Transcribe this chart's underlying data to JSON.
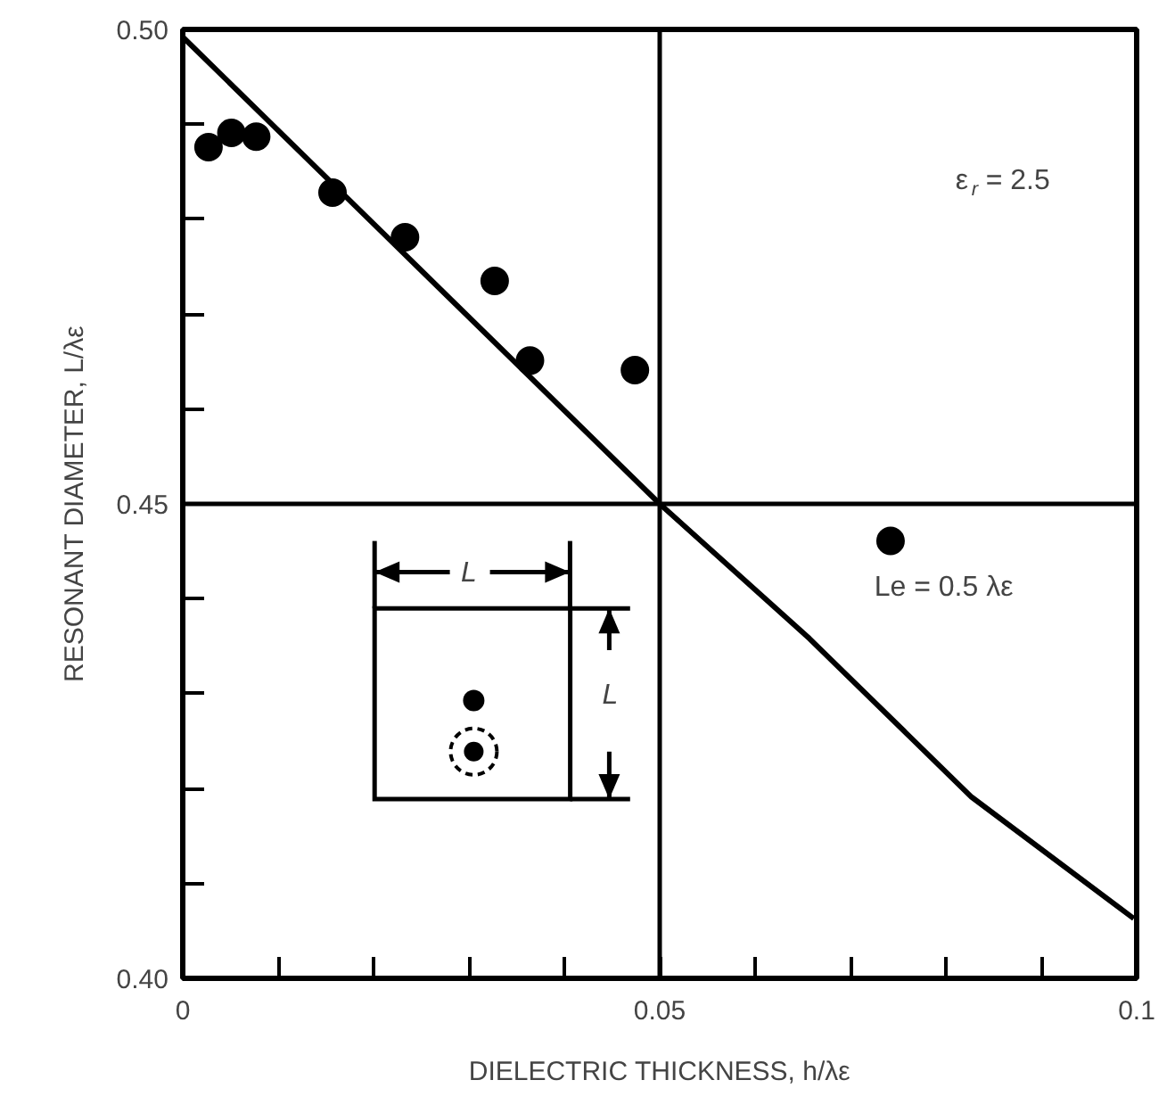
{
  "chart_data": {
    "type": "scatter",
    "xlabel": "DIELECTRIC THICKNESS, h/λε",
    "ylabel": "RESONANT DIAMETER, L/λε",
    "xlim": [
      0,
      0.1
    ],
    "ylim": [
      0.4,
      0.5
    ],
    "xticks": [
      0,
      {
        "value": 0.01,
        "label": null
      },
      {
        "value": 0.02,
        "label": null
      },
      {
        "value": 0.03,
        "label": null
      },
      {
        "value": 0.04,
        "label": null
      },
      0.05,
      {
        "value": 0.06,
        "label": null
      },
      {
        "value": 0.07,
        "label": null
      },
      {
        "value": 0.08,
        "label": null
      },
      {
        "value": 0.09,
        "label": null
      },
      0.1
    ],
    "yticks": [
      {
        "value": 0.4,
        "label": "0.40"
      },
      {
        "value": 0.41,
        "label": null
      },
      {
        "value": 0.42,
        "label": null
      },
      {
        "value": 0.43,
        "label": null
      },
      {
        "value": 0.44,
        "label": null
      },
      0.45,
      {
        "value": 0.46,
        "label": null
      },
      {
        "value": 0.47,
        "label": null
      },
      {
        "value": 0.48,
        "label": null
      },
      {
        "value": 0.49,
        "label": null
      },
      {
        "value": 0.5,
        "label": "0.50"
      }
    ],
    "series": [
      {
        "marker": "circle",
        "color": "#000000",
        "x": [
          0.0027,
          0.0051,
          0.0077,
          0.0157,
          0.0233,
          0.0327,
          0.0364,
          0.0474,
          0.0742
        ],
        "values": [
          0.4876,
          0.4891,
          0.4887,
          0.4828,
          0.4781,
          0.4735,
          0.4651,
          0.4641,
          0.4461
        ]
      },
      {
        "type": "line",
        "color": "#000000",
        "x": [
          0,
          0.025,
          0.05,
          0.0657,
          0.0827,
          0.0997
        ],
        "values": [
          0.4992,
          0.4746,
          0.45,
          0.4358,
          0.4191,
          0.4063
        ]
      }
    ],
    "ref_lines": [
      {
        "axis": "x",
        "value": 0.05
      },
      {
        "axis": "y",
        "value": 0.45
      }
    ],
    "annotations": [
      "ε$_{r}$ = 2.5",
      "Le = 0.5 λε",
      "L",
      "L"
    ],
    "line_style": "solid",
    "grid": false
  }
}
